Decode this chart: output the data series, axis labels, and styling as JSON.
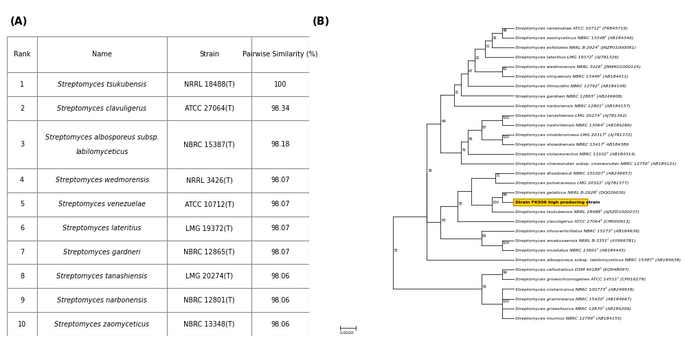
{
  "panel_a": {
    "label": "(A)",
    "headers": [
      "Rank",
      "Name",
      "Strain",
      "Pairwise Similarity (%)"
    ],
    "rows": [
      [
        "1",
        "Streptomyces tsukubensis",
        "NRRL 18488(T)",
        "100"
      ],
      [
        "2",
        "Streptomyces clavuligerus",
        "ATCC 27064(T)",
        "98.34"
      ],
      [
        "3",
        "Streptomyces albosporeus subsp.\nlabilomyceticus",
        "NBRC 15387(T)",
        "98.18"
      ],
      [
        "4",
        "Streptomyces wedmorensis",
        "NRRL 3426(T)",
        "98.07"
      ],
      [
        "5",
        "Streptomyces venezuelae",
        "ATCC 10712(T)",
        "98.07"
      ],
      [
        "6",
        "Streptomyces lateritius",
        "LMG 19372(T)",
        "98.07"
      ],
      [
        "7",
        "Streptomyces gardneri",
        "NBRC 12865(T)",
        "98.07"
      ],
      [
        "8",
        "Streptomyces tanashiensis",
        "LMG 20274(T)",
        "98.06"
      ],
      [
        "9",
        "Streptomyces narbonensis",
        "NBRC 12801(T)",
        "98.06"
      ],
      [
        "10",
        "Streptomyces zaomyceticus",
        "NBRC 13348(T)",
        "98.06"
      ]
    ]
  },
  "panel_b": {
    "label": "(B)",
    "taxa": [
      "Streptomyces venezuelae ATCC 10712ᵀ (FR845719)",
      "Streptomyces zaomyceticus NBRC 13348ᵀ (AB184346)",
      "Streptomyces exfoliates NRRL B-2924ᵀ (JNZP01000081)",
      "Streptomyces lateritius LMG 19372ᵀ (AJ781326)",
      "Streptomyces wedmorensis NRRL 3426ᵀ (JNWK01000124)",
      "Streptomyces omiyaensis NBRC 13449ᵀ (AB184411)",
      "Streptomyces litmocidini NBRC 12792ᵀ (AB184149)",
      "Streptomyces gardneri NBRC 12865ᵀ (AB249908)",
      "Streptomyces narbonensis NBRC 12801ᵀ (AB184157)",
      "Streptomyces tanashiensis LMG 20274ᵀ (AJ781362)",
      "Streptomyces nashvillensis NBRC 13064ᵀ (AB184286)",
      "Streptomyces vindobrunneus LMG 20317ᵀ (AJ781372)",
      "Streptomyces showdoenais NBRC 13417ᵀ AB184389",
      "Streptomyces violaceorectus NBRC 13102ᵀ (AB184314)",
      "Streptomyces cinereoruber subsp. cinereoruber NBRC 12756ᵀ (AB184121)",
      "Streptomyces drozdowiczi NBRC 101007ᵀ (AB249957)",
      "Streptomyces pulveraceous LMG 20322ᵀ (AJ781377)",
      "Streptomyces gelaticus NRRL B-2928ᵀ (DQ026636)",
      "Strain FK506 high producing strain",
      "Streptomyces tsukubensis NRRL 18488ᵀ (AJSZD1000237)",
      "Streptomyces clavuligerus ATCC 27064ᵀ (CM000913)",
      "Streptomyces olivoverticillatus NBRC 15273ᵀ (AB184636)",
      "Streptomyces amakusaensis NRRL B-3351ᵀ (AY999781)",
      "Streptomyces musitatus NBRC 13601ᵀ (AB184445)",
      "Streptomyces albosporeus subsp. labilomyceticus NBRC 15387ᵀ (AB184638)",
      "Streptomyces cellostaticus DSM 40189ᵀ (KQ948097)",
      "Streptomyces griseochromogenes ATCC 14511ᵀ (CP016279)",
      "Streptomyces costaricanus NBRC 100773ᵀ (AB249939)",
      "Streptomyces graminearus NBRC 15420ᵀ (AB184667)",
      "Streptomyces griseofuscus NBRC 12870ᵀ (AB184206)",
      "Streptomyces murinus NBRC 12799ᵀ (AB184155)"
    ],
    "highlighted_strain": "Strain FK506 high producing strain",
    "highlight_color": "#FFD700",
    "scale_bar": "0.0020"
  }
}
